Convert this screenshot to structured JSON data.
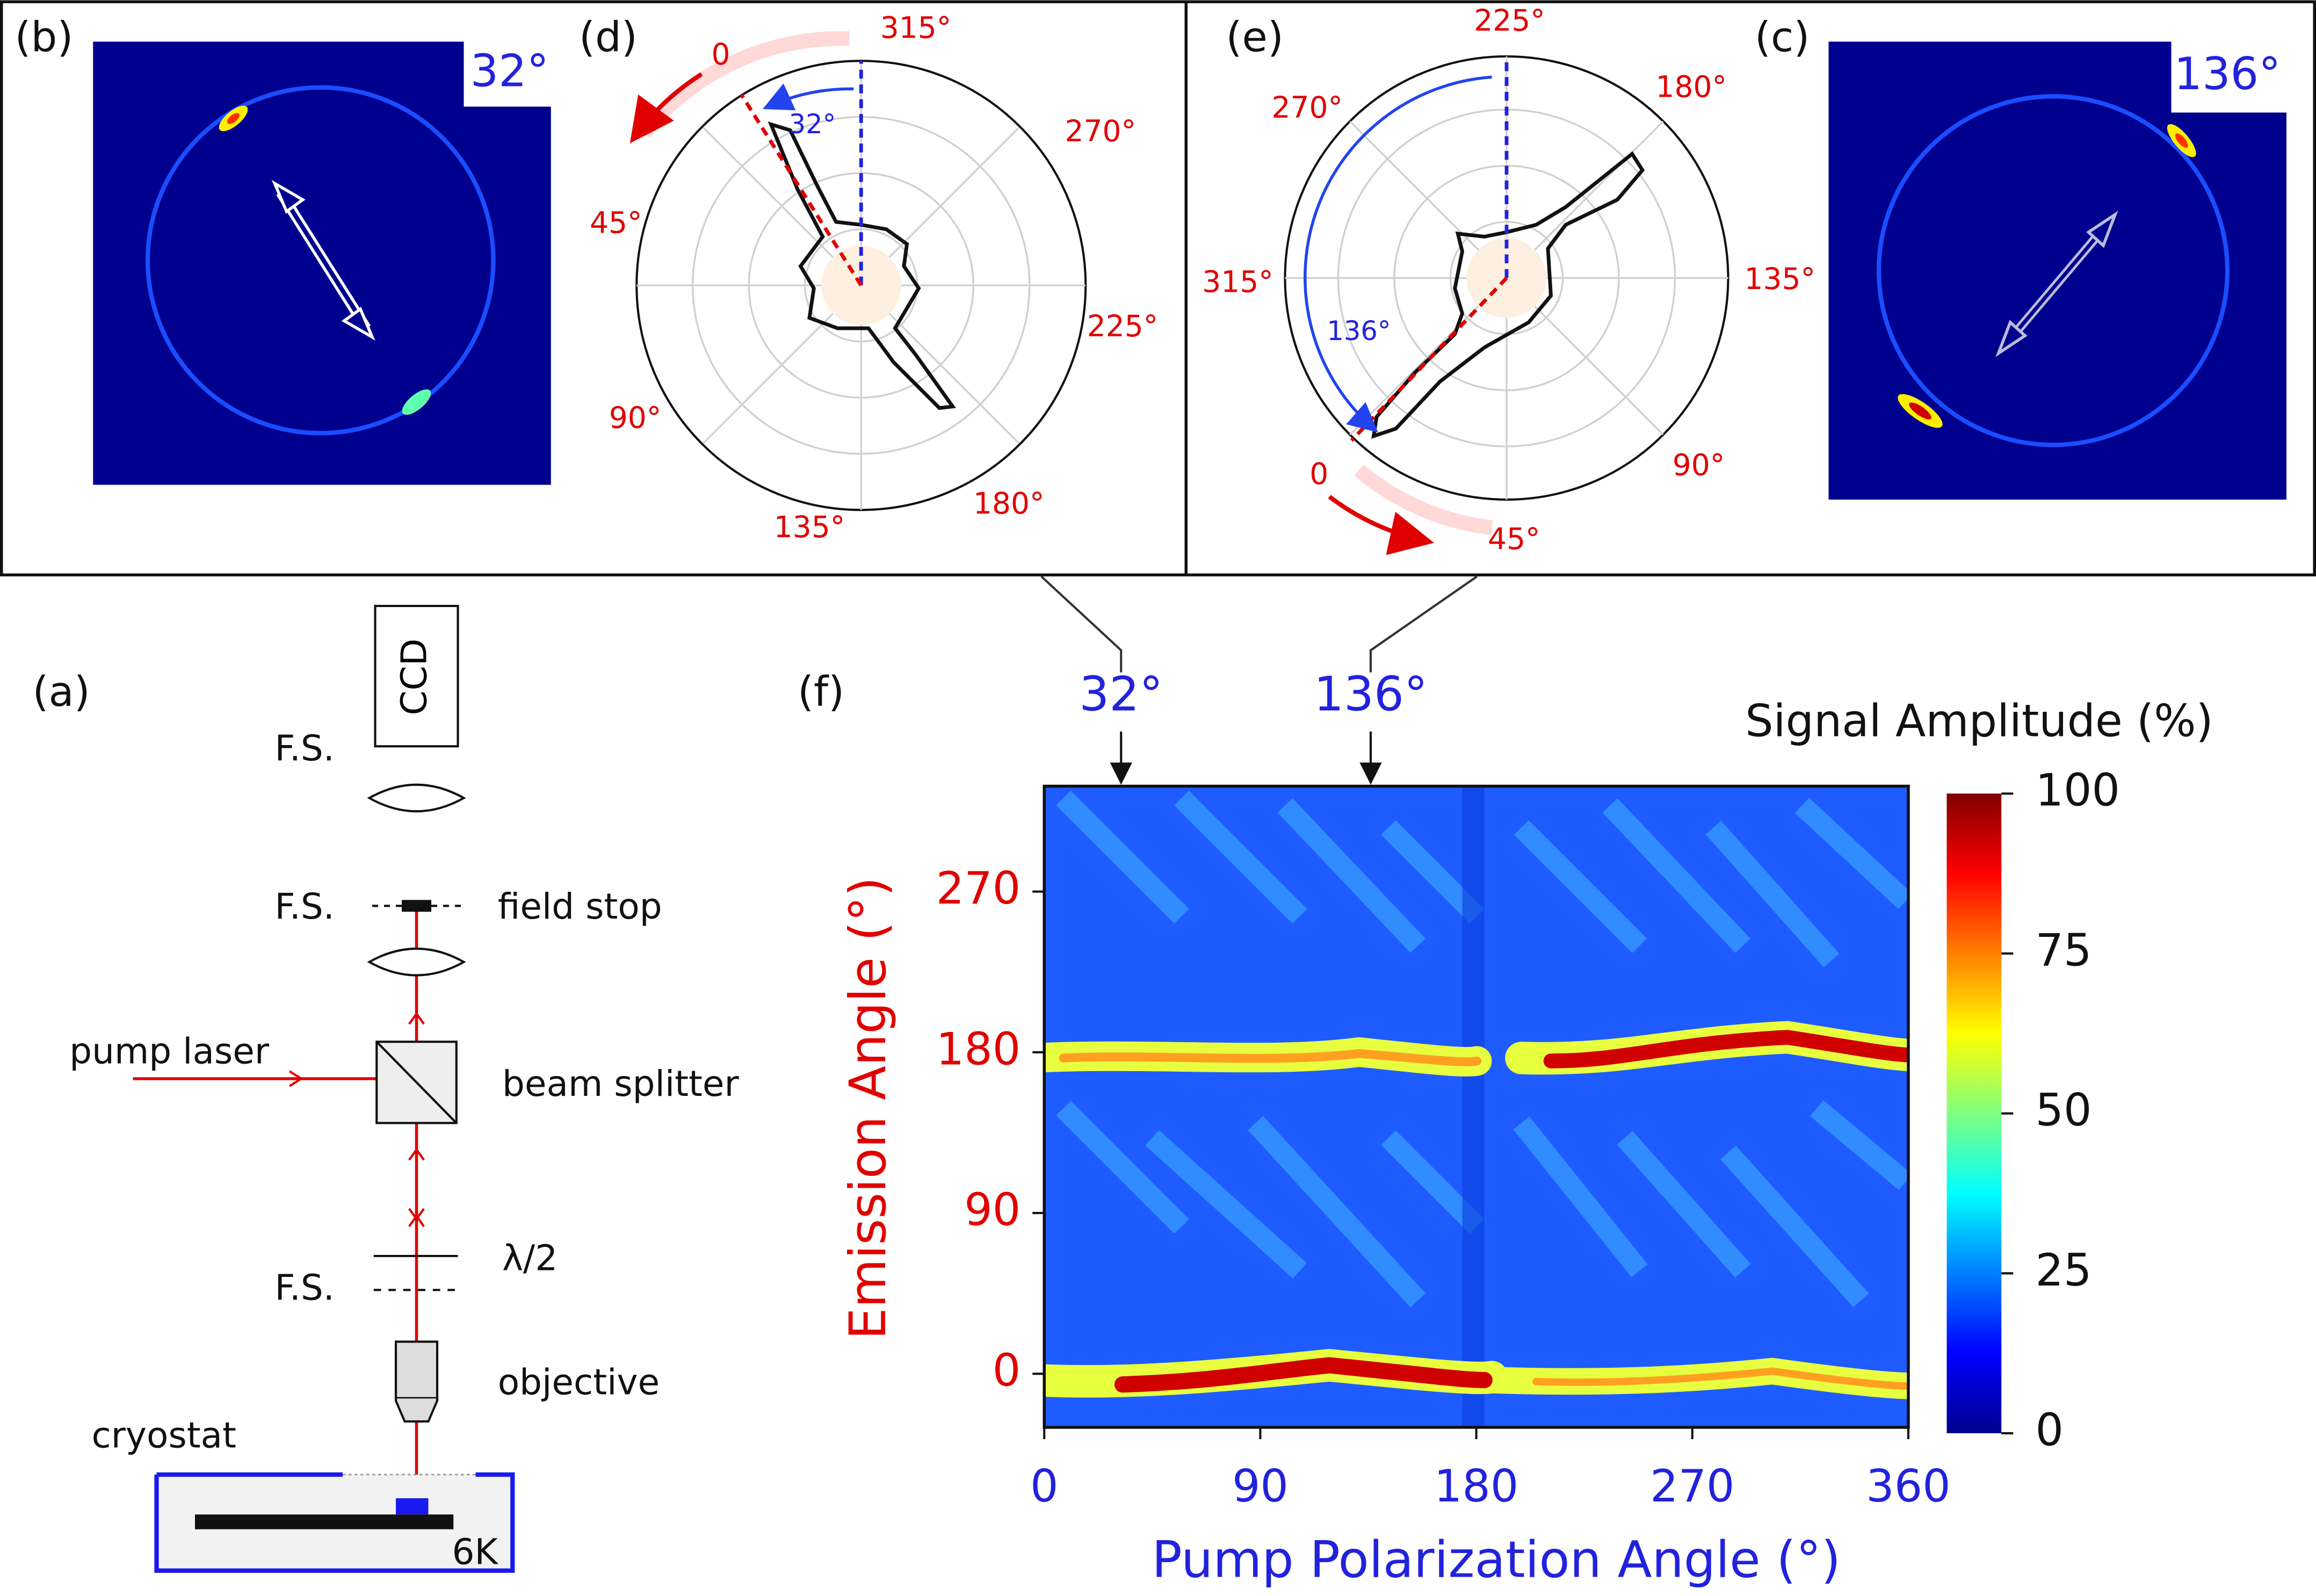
{
  "panels": [
    "(a)",
    "(b)",
    "(c)",
    "(d)",
    "(e)",
    "(f)"
  ],
  "setup": {
    "ccd": "CCD",
    "fs": [
      "F.S.",
      "F.S.",
      "F.S."
    ],
    "field_stop": "field stop",
    "pump_laser": "pump laser",
    "beam_splitter": "beam splitter",
    "waveplate": "λ/2",
    "objective": "objective",
    "cryostat": "cryostat",
    "temperature": "6K"
  },
  "image_b": {
    "angle": "32°"
  },
  "image_c": {
    "angle": "136°"
  },
  "polar_d": {
    "labels": [
      "315°",
      "270°",
      "225°",
      "180°",
      "135°",
      "90°",
      "45°",
      "0"
    ],
    "angle": "32°"
  },
  "polar_e": {
    "labels": [
      "225°",
      "180°",
      "135°",
      "90°",
      "45°",
      "0",
      "315°",
      "270°"
    ],
    "angle": "136°"
  },
  "chart_data": {
    "type": "heatmap",
    "xlabel": "Pump Polarization Angle (°)",
    "ylabel": "Emission Angle (°)",
    "xlim": [
      0,
      360
    ],
    "xticks": [
      0,
      90,
      180,
      270,
      360
    ],
    "ylim": [
      -30,
      329
    ],
    "yticks": [
      0,
      90,
      180,
      270
    ],
    "markers": [
      {
        "value": 32,
        "label": "32°"
      },
      {
        "value": 136,
        "label": "136°"
      }
    ],
    "colorbar": {
      "label": "Signal Amplitude (%)",
      "lim": [
        0,
        100
      ],
      "ticks": [
        0,
        25,
        50,
        75,
        100
      ]
    }
  }
}
